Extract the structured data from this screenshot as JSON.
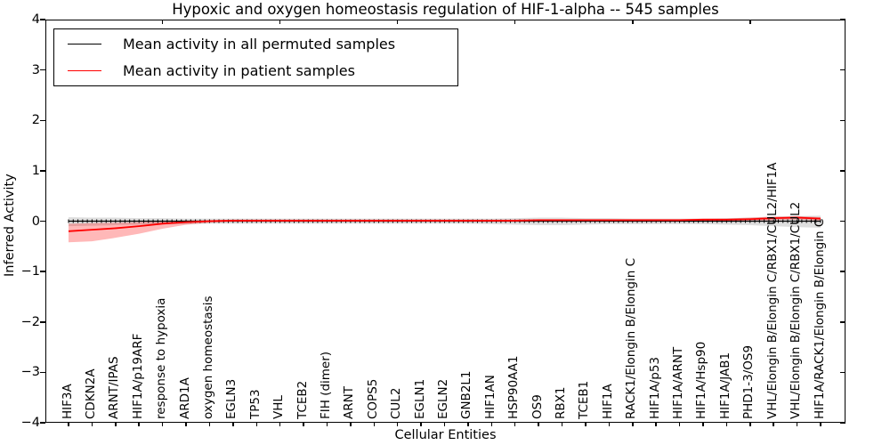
{
  "title": "Hypoxic and oxygen homeostasis regulation of HIF-1-alpha -- 545 samples",
  "axes": {
    "ylabel": "Inferred Activity",
    "xlabel": "Cellular Entities",
    "ylim": [
      -4,
      4
    ],
    "yticks": [
      "4",
      "3",
      "2",
      "1",
      "0",
      "−1",
      "−2",
      "−3",
      "−4"
    ],
    "ytick_values": [
      4,
      3,
      2,
      1,
      0,
      -1,
      -2,
      -3,
      -4
    ],
    "top_tick_indices": [
      4,
      9,
      14,
      19,
      24,
      29
    ],
    "grid": "off"
  },
  "legend": {
    "position": "upper-left",
    "items": [
      {
        "label": "Mean activity in all permuted samples",
        "color": "#000000"
      },
      {
        "label": "Mean activity in patient samples",
        "color": "#ff0000"
      }
    ]
  },
  "chart_data": {
    "type": "line",
    "title": "Hypoxic and oxygen homeostasis regulation of HIF-1-alpha -- 545 samples",
    "xlabel": "Cellular Entities",
    "ylabel": "Inferred Activity",
    "ylim": [
      -4,
      4
    ],
    "categories": [
      "HIF3A",
      "CDKN2A",
      "ARNT/IPAS",
      "HIF1A/p19ARF",
      "response to hypoxia",
      "ARD1A",
      "oxygen homeostasis",
      "EGLN3",
      "TP53",
      "VHL",
      "TCEB2",
      "FIH (dimer)",
      "ARNT",
      "COPS5",
      "CUL2",
      "EGLN1",
      "EGLN2",
      "GNB2L1",
      "HIF1AN",
      "HSP90AA1",
      "OS9",
      "RBX1",
      "TCEB1",
      "HIF1A",
      "RACK1/Elongin B/Elongin C",
      "HIF1A/p53",
      "HIF1A/ARNT",
      "HIF1A/Hsp90",
      "HIF1A/JAB1",
      "PHD1-3/OS9",
      "VHL/Elongin B/Elongin C/RBX1/CUL2/HIF1A",
      "VHL/Elongin B/Elongin C/RBX1/CUL2",
      "HIF1A/RACK1/Elongin B/Elongin C"
    ],
    "series": [
      {
        "name": "Mean activity in all permuted samples",
        "color": "#000000",
        "band_color": "rgba(0,0,0,0.13)",
        "values": [
          0,
          0,
          0,
          0,
          0,
          0,
          0,
          0,
          0,
          0,
          0,
          0,
          0,
          0,
          0,
          0,
          0,
          0,
          0,
          0,
          0,
          0,
          0,
          0,
          0,
          0,
          0,
          0,
          0,
          0,
          0,
          0,
          0
        ],
        "band_lo": [
          -0.1,
          -0.09,
          -0.08,
          -0.07,
          -0.06,
          -0.06,
          -0.05,
          -0.05,
          -0.05,
          -0.05,
          -0.05,
          -0.05,
          -0.05,
          -0.05,
          -0.05,
          -0.05,
          -0.05,
          -0.05,
          -0.06,
          -0.07,
          -0.08,
          -0.08,
          -0.07,
          -0.06,
          -0.06,
          -0.06,
          -0.06,
          -0.06,
          -0.07,
          -0.08,
          -0.1,
          -0.12,
          -0.13
        ],
        "band_hi": [
          0.08,
          0.07,
          0.07,
          0.06,
          0.06,
          0.05,
          0.05,
          0.05,
          0.05,
          0.05,
          0.05,
          0.05,
          0.05,
          0.05,
          0.05,
          0.05,
          0.05,
          0.05,
          0.05,
          0.06,
          0.07,
          0.07,
          0.06,
          0.06,
          0.05,
          0.05,
          0.05,
          0.05,
          0.06,
          0.07,
          0.09,
          0.1,
          0.11
        ]
      },
      {
        "name": "Mean activity in patient samples",
        "color": "#ff0000",
        "band_color": "rgba(255,0,0,0.28)",
        "values": [
          -0.2,
          -0.17,
          -0.14,
          -0.1,
          -0.05,
          -0.02,
          0.0,
          0.01,
          0.01,
          0.01,
          0.01,
          0.01,
          0.01,
          0.01,
          0.01,
          0.01,
          0.01,
          0.01,
          0.01,
          0.01,
          0.02,
          0.02,
          0.02,
          0.02,
          0.02,
          0.02,
          0.02,
          0.03,
          0.03,
          0.04,
          0.06,
          0.07,
          0.05
        ],
        "band_lo": [
          -0.42,
          -0.4,
          -0.33,
          -0.25,
          -0.15,
          -0.07,
          -0.03,
          -0.01,
          -0.01,
          -0.01,
          -0.01,
          -0.01,
          -0.01,
          -0.01,
          -0.01,
          -0.01,
          -0.01,
          -0.01,
          -0.01,
          -0.01,
          0.0,
          0.0,
          0.0,
          0.0,
          0.0,
          0.0,
          0.0,
          0.0,
          0.0,
          0.01,
          0.02,
          0.03,
          0.01
        ],
        "band_hi": [
          -0.05,
          -0.04,
          -0.03,
          -0.02,
          0.0,
          0.01,
          0.02,
          0.03,
          0.03,
          0.03,
          0.03,
          0.03,
          0.03,
          0.03,
          0.03,
          0.03,
          0.03,
          0.03,
          0.03,
          0.03,
          0.04,
          0.04,
          0.04,
          0.04,
          0.04,
          0.04,
          0.04,
          0.05,
          0.05,
          0.07,
          0.09,
          0.1,
          0.08
        ]
      }
    ]
  }
}
